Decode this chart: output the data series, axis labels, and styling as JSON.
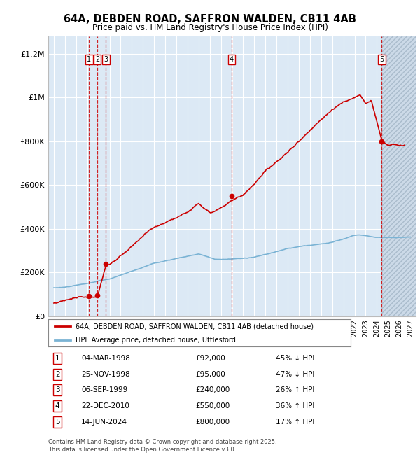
{
  "title_line1": "64A, DEBDEN ROAD, SAFFRON WALDEN, CB11 4AB",
  "title_line2": "Price paid vs. HM Land Registry's House Price Index (HPI)",
  "ylabel_ticks": [
    "£0",
    "£200K",
    "£400K",
    "£600K",
    "£800K",
    "£1M",
    "£1.2M"
  ],
  "ytick_values": [
    0,
    200000,
    400000,
    600000,
    800000,
    1000000,
    1200000
  ],
  "ylim": [
    0,
    1280000
  ],
  "xlim_start": 1994.5,
  "xlim_end": 2027.5,
  "transactions": [
    {
      "num": 1,
      "date": "04-MAR-1998",
      "year": 1998.17,
      "price": 92000,
      "pct": "45%",
      "dir": "↓"
    },
    {
      "num": 2,
      "date": "25-NOV-1998",
      "year": 1998.9,
      "price": 95000,
      "pct": "47%",
      "dir": "↓"
    },
    {
      "num": 3,
      "date": "06-SEP-1999",
      "year": 1999.68,
      "price": 240000,
      "pct": "26%",
      "dir": "↑"
    },
    {
      "num": 4,
      "date": "22-DEC-2010",
      "year": 2010.97,
      "price": 550000,
      "pct": "36%",
      "dir": "↑"
    },
    {
      "num": 5,
      "date": "14-JUN-2024",
      "year": 2024.45,
      "price": 800000,
      "pct": "17%",
      "dir": "↑"
    }
  ],
  "hpi_color": "#7ab3d4",
  "price_color": "#cc0000",
  "legend_label_red": "64A, DEBDEN ROAD, SAFFRON WALDEN, CB11 4AB (detached house)",
  "legend_label_blue": "HPI: Average price, detached house, Uttlesford",
  "footnote": "Contains HM Land Registry data © Crown copyright and database right 2025.\nThis data is licensed under the Open Government Licence v3.0.",
  "background_color": "#dce9f5",
  "grid_color": "#ffffff",
  "hatch_start": 2024.45
}
